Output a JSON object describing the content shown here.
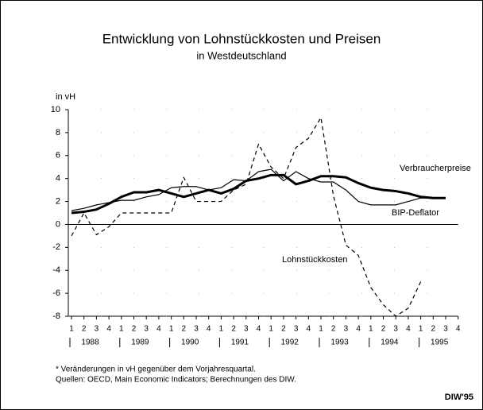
{
  "chart_data": {
    "type": "line",
    "title": "Entwicklung von Lohnstückkosten und Preisen",
    "subtitle": "in Westdeutschland",
    "y_label": "in vH",
    "categories": [
      "1",
      "2",
      "3",
      "4",
      "1",
      "2",
      "3",
      "4",
      "1",
      "2",
      "3",
      "4",
      "1",
      "2",
      "3",
      "4",
      "1",
      "2",
      "3",
      "4",
      "1",
      "2",
      "3",
      "4",
      "1",
      "2",
      "3",
      "4",
      "1",
      "2",
      "3",
      "4"
    ],
    "years": [
      "1988",
      "1989",
      "1990",
      "1991",
      "1992",
      "1993",
      "1994",
      "1995"
    ],
    "series": [
      {
        "name": "Verbraucherpreise",
        "color": "#000000",
        "line_style": "thick",
        "values": [
          1.0,
          1.1,
          1.3,
          1.8,
          2.4,
          2.8,
          2.8,
          3.0,
          2.7,
          2.4,
          2.7,
          3.0,
          2.7,
          3.1,
          3.8,
          4.0,
          4.3,
          4.3,
          3.5,
          3.8,
          4.2,
          4.2,
          4.1,
          3.6,
          3.2,
          3.0,
          2.9,
          2.7,
          2.4,
          2.3,
          2.3,
          null
        ]
      },
      {
        "name": "BIP-Deflator",
        "color": "#000000",
        "line_style": "thin",
        "values": [
          1.2,
          1.4,
          1.7,
          1.9,
          2.1,
          2.1,
          2.4,
          2.6,
          3.2,
          3.3,
          3.3,
          3.0,
          3.2,
          3.9,
          3.8,
          4.6,
          4.8,
          3.8,
          4.6,
          4.0,
          3.7,
          3.7,
          3.0,
          2.0,
          1.7,
          1.7,
          1.7,
          2.0,
          2.3,
          2.3,
          2.3,
          null
        ]
      },
      {
        "name": "Lohnstückkosten",
        "color": "#000000",
        "line_style": "dashed",
        "values": [
          -1.0,
          1.0,
          -0.9,
          -0.2,
          1.0,
          1.0,
          1.0,
          1.0,
          1.0,
          4.1,
          2.0,
          2.0,
          2.0,
          3.0,
          3.5,
          7.0,
          5.0,
          4.0,
          6.7,
          7.5,
          9.3,
          2.5,
          -1.8,
          -2.7,
          -5.5,
          -7.0,
          -8.0,
          -7.3,
          -5.0,
          null,
          null,
          null
        ]
      }
    ],
    "ylim": [
      -8,
      10
    ],
    "yticks": [
      -8,
      -6,
      -4,
      -2,
      0,
      2,
      4,
      6,
      8,
      10
    ],
    "grid": true,
    "footnote": "* Veränderungen in vH gegenüber dem Vorjahresquartal.",
    "source": "Quellen: OECD, Main Economic Indicators; Berechnungen des DIW.",
    "credit": "DIW'95"
  }
}
